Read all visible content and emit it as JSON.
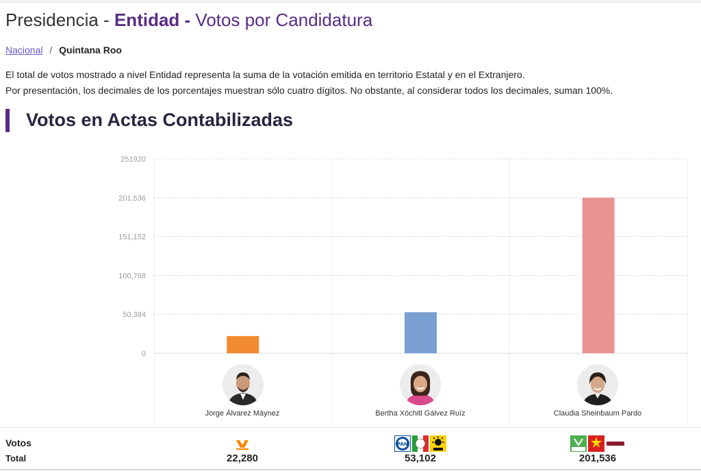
{
  "page": {
    "title_part1": "Presidencia - ",
    "title_part2": "Entidad",
    "title_sep": " - ",
    "title_part3": "Votos por Candidatura"
  },
  "breadcrumb": {
    "home": "Nacional",
    "separator": "/",
    "current": "Quintana Roo"
  },
  "notes": [
    "El total de votos mostrado a nivel Entidad representa la suma de la votación emitida en territorio Estatal y en el Extranjero.",
    "Por presentación, los decimales de los porcentajes muestran sólo cuatro dígitos. No obstante, al considerar todos los decimales, suman 100%."
  ],
  "section": {
    "title": "Votos en Actas Contabilizadas"
  },
  "chart_data": {
    "type": "bar",
    "categories": [
      "Jorge Álvarez Máynez",
      "Bertha Xóchitl Gálvez Ruíz",
      "Claudia Sheinbaum Pardo"
    ],
    "values": [
      22280,
      53102,
      201536
    ],
    "colors": [
      "#f28a30",
      "#7a9fd1",
      "#e89394"
    ],
    "yticks": [
      "0",
      "50,384",
      "100,768",
      "151,152",
      "201,536",
      "251920"
    ],
    "ylim": [
      0,
      251920
    ],
    "grid": true
  },
  "table": {
    "row_label_1": "Votos",
    "row_label_2": "Total",
    "totals": [
      "22,280",
      "53,102",
      "201,536"
    ]
  },
  "party_logos": {
    "jorge": [
      {
        "name": "movimiento-ciudadano",
        "color": "#ff8300"
      }
    ],
    "bertha": [
      {
        "name": "PAN",
        "color": "#0b4fa1"
      },
      {
        "name": "PRI",
        "color": "#e22b2b"
      },
      {
        "name": "PRD",
        "color": "#ffd200"
      }
    ],
    "claudia": [
      {
        "name": "VERDE",
        "color": "#4caf50"
      },
      {
        "name": "PT",
        "color": "#d8201f"
      },
      {
        "name": "morena",
        "color": "#8b1a2b"
      }
    ]
  }
}
